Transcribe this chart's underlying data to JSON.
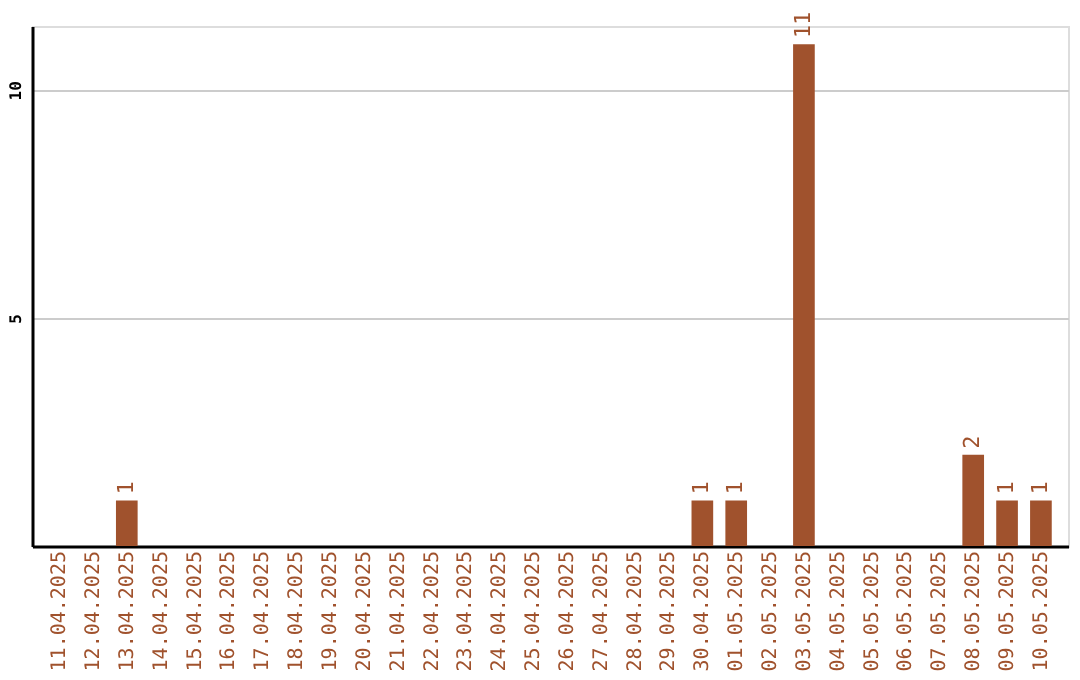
{
  "chart_data": {
    "type": "bar",
    "categories": [
      "11.04.2025",
      "12.04.2025",
      "13.04.2025",
      "14.04.2025",
      "15.04.2025",
      "16.04.2025",
      "17.04.2025",
      "18.04.2025",
      "19.04.2025",
      "20.04.2025",
      "21.04.2025",
      "22.04.2025",
      "23.04.2025",
      "24.04.2025",
      "25.04.2025",
      "26.04.2025",
      "27.04.2025",
      "28.04.2025",
      "29.04.2025",
      "30.04.2025",
      "01.05.2025",
      "02.05.2025",
      "03.05.2025",
      "04.05.2025",
      "05.05.2025",
      "06.05.2025",
      "07.05.2025",
      "08.05.2025",
      "09.05.2025",
      "10.05.2025"
    ],
    "values": [
      0,
      0,
      1,
      0,
      0,
      0,
      0,
      0,
      0,
      0,
      0,
      0,
      0,
      0,
      0,
      0,
      0,
      0,
      0,
      1,
      1,
      0,
      11,
      0,
      0,
      0,
      0,
      2,
      1,
      1
    ],
    "value_labels": [
      null,
      null,
      "1",
      null,
      null,
      null,
      null,
      null,
      null,
      null,
      null,
      null,
      null,
      null,
      null,
      null,
      null,
      null,
      null,
      "1",
      "1",
      null,
      "11",
      null,
      null,
      null,
      null,
      "2",
      "1",
      "1"
    ],
    "color": "#a0522d",
    "ylim": [
      0,
      11.4
    ],
    "yticks": [
      5,
      10
    ],
    "grid": "y"
  }
}
